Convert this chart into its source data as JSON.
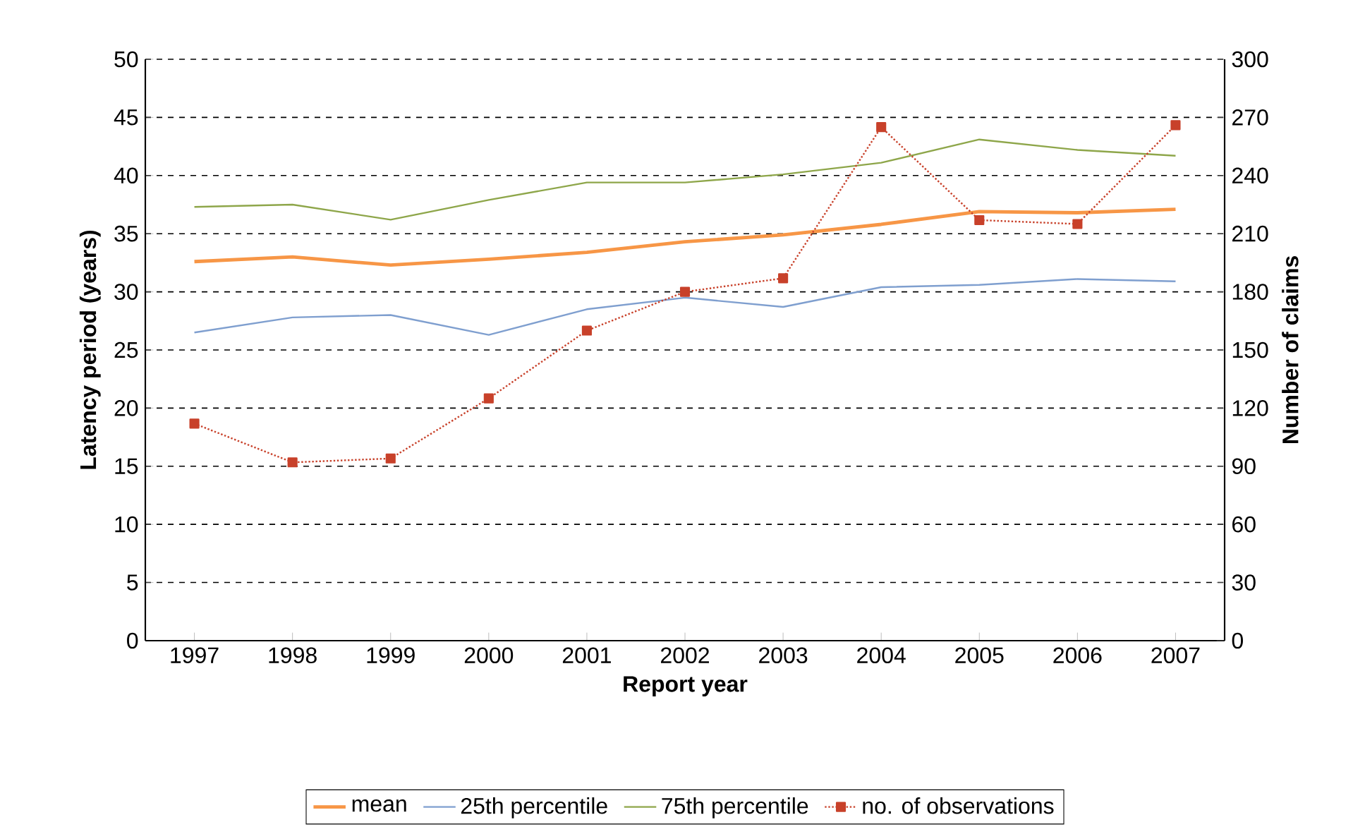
{
  "chart_data": {
    "type": "line",
    "xlabel": "Report year",
    "ylabel": "Latency period (years)",
    "y2label": "Number of claims",
    "categories": [
      "1997",
      "1998",
      "1999",
      "2000",
      "2001",
      "2002",
      "2003",
      "2004",
      "2005",
      "2006",
      "2007"
    ],
    "ylim": [
      0,
      50
    ],
    "yticks": [
      0,
      5,
      10,
      15,
      20,
      25,
      30,
      35,
      40,
      45,
      50
    ],
    "y2lim": [
      0,
      300
    ],
    "y2ticks": [
      0,
      30,
      60,
      90,
      120,
      150,
      180,
      210,
      240,
      270,
      300
    ],
    "grid": "y",
    "legend": "bottom",
    "series": [
      {
        "name": "mean",
        "color": "#f79646",
        "marker": "none",
        "line_style": "solid",
        "values": [
          32.6,
          33.0,
          32.3,
          32.8,
          33.4,
          34.3,
          34.9,
          35.8,
          36.9,
          36.8,
          37.1
        ]
      },
      {
        "name": "25th percentile",
        "color": "#7f9fcf",
        "marker": "none",
        "line_style": "solid",
        "values": [
          26.5,
          27.8,
          28.0,
          26.3,
          28.5,
          29.5,
          28.7,
          30.4,
          30.6,
          31.1,
          30.9
        ]
      },
      {
        "name": "75th percentile",
        "color": "#8ea64a",
        "marker": "none",
        "line_style": "solid",
        "values": [
          37.3,
          37.5,
          36.2,
          37.9,
          39.4,
          39.4,
          40.1,
          41.1,
          43.1,
          42.2,
          41.7
        ]
      },
      {
        "name": "no. of observations",
        "color": "#c8412a",
        "marker": "square",
        "line_style": "dotted",
        "axis": "y2",
        "values": [
          112,
          92,
          94,
          125,
          160,
          180,
          187,
          265,
          217,
          215,
          266
        ]
      }
    ]
  }
}
